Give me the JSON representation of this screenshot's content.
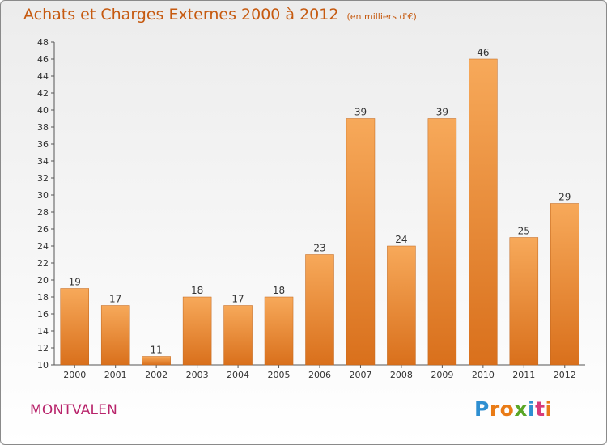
{
  "title": "Achats et Charges Externes 2000 à 2012",
  "subtitle": "(en milliers d'€)",
  "city": "MONTVALEN",
  "logo": {
    "letters": [
      "P",
      "r",
      "o",
      "x",
      "i",
      "t",
      "i"
    ],
    "colors": [
      "#2e8fd1",
      "#e97b16",
      "#e97b16",
      "#5aa626",
      "#2e8fd1",
      "#d73b7a",
      "#e97b16"
    ]
  },
  "chart_data": {
    "type": "bar",
    "categories": [
      "2000",
      "2001",
      "2002",
      "2003",
      "2004",
      "2005",
      "2006",
      "2007",
      "2008",
      "2009",
      "2010",
      "2011",
      "2012"
    ],
    "values": [
      19,
      17,
      11,
      18,
      17,
      18,
      23,
      39,
      24,
      39,
      46,
      25,
      29
    ],
    "ylim": [
      10,
      48
    ],
    "yticks": [
      10,
      12,
      14,
      16,
      18,
      20,
      22,
      24,
      26,
      28,
      30,
      32,
      34,
      36,
      38,
      40,
      42,
      44,
      46,
      48
    ],
    "grid": false,
    "bar_color": "#e8862c"
  }
}
